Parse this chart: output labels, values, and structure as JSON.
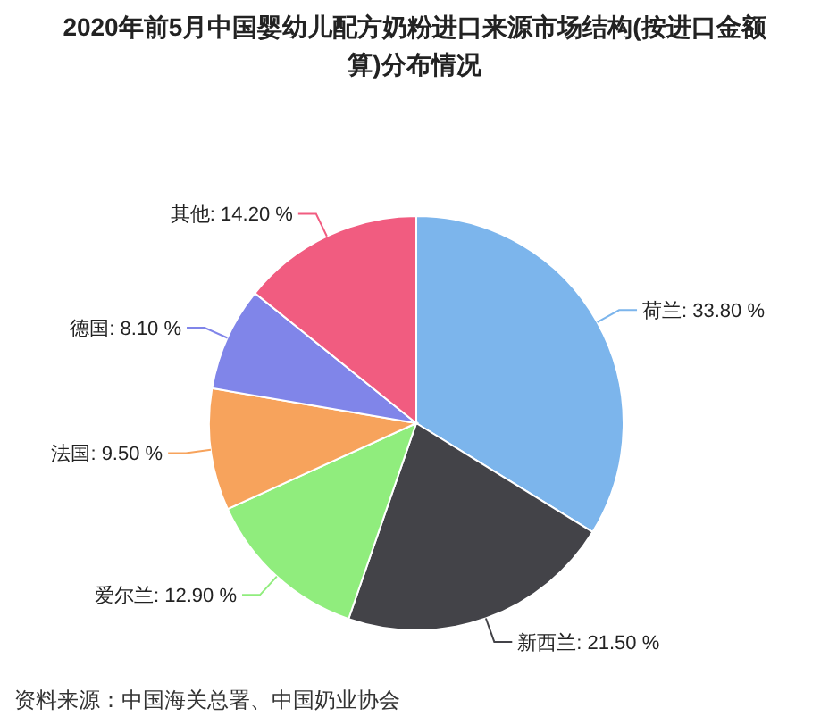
{
  "chart_data": {
    "type": "pie",
    "title": "2020年前5月中国婴幼儿配方奶粉进口来源市场结构(按进口金额算)分布情况",
    "categories": [
      "荷兰",
      "新西兰",
      "爱尔兰",
      "法国",
      "德国",
      "其他"
    ],
    "values": [
      33.8,
      21.5,
      12.9,
      9.5,
      8.1,
      14.2
    ],
    "value_labels": [
      "33.80 %",
      "21.50 %",
      "12.90 %",
      "9.50 %",
      "8.10 %",
      "14.20 %"
    ],
    "colors": [
      "#7cb5ec",
      "#434348",
      "#90ed7d",
      "#f7a35c",
      "#8085e9",
      "#f15c80"
    ],
    "annotations": [
      "资料来源：中国海关总署、中国奶业协会"
    ]
  }
}
